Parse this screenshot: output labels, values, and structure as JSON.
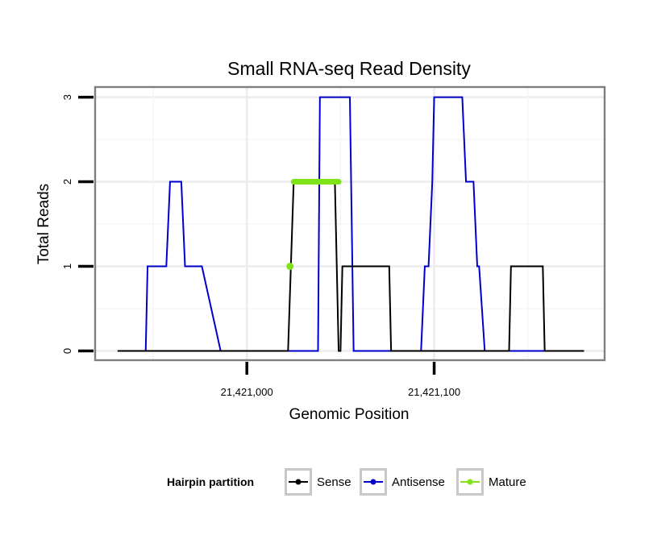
{
  "chart_data": {
    "type": "line",
    "title": "Small RNA-seq Read Density",
    "xlabel": "Genomic Position",
    "ylabel": "Total Reads",
    "xlim": [
      20920,
      21192
    ],
    "ylim": [
      -0.11,
      3.12
    ],
    "x_ticks": [
      {
        "value": 21001,
        "label": "21,421,000"
      },
      {
        "value": 21101,
        "label": "21,421,100"
      }
    ],
    "y_ticks": [
      {
        "value": 0,
        "label": "0"
      },
      {
        "value": 1,
        "label": "1"
      },
      {
        "value": 2,
        "label": "2"
      },
      {
        "value": 3,
        "label": "3"
      }
    ],
    "legend": {
      "title": "Hairpin partition",
      "position": "bottom",
      "entries": [
        "Sense",
        "Antisense",
        "Mature"
      ]
    },
    "series": [
      {
        "name": "Antisense",
        "color": "#0000cc",
        "x": [
          20932,
          20947,
          20948,
          20958,
          20960,
          20966,
          20968,
          20969,
          20977,
          20987,
          20982,
          21039,
          21040,
          21056,
          21058,
          21094,
          21096,
          21098,
          21100,
          21101,
          21116,
          21118,
          21122,
          21124,
          21125,
          21128,
          21181
        ],
        "y": [
          0,
          0,
          1,
          1,
          2,
          2,
          1,
          1,
          1,
          0,
          0,
          0,
          3,
          3,
          0,
          0,
          1,
          1,
          2,
          3,
          3,
          2,
          2,
          1,
          1,
          0,
          0
        ]
      },
      {
        "name": "Sense",
        "color": "#000000",
        "x": [
          20932,
          21023,
          21026,
          21048,
          21050,
          21051,
          21052,
          21077,
          21078,
          21141,
          21142,
          21159,
          21160,
          21181
        ],
        "y": [
          0,
          0,
          2,
          2,
          0,
          0,
          1,
          1,
          0,
          0,
          1,
          1,
          0,
          0
        ]
      },
      {
        "name": "Mature",
        "color": "#7fe31a",
        "points": [
          {
            "x": 21024,
            "y": 1
          }
        ],
        "segments": [
          {
            "x1": 21026,
            "x2": 21050,
            "y": 2
          }
        ]
      }
    ]
  }
}
